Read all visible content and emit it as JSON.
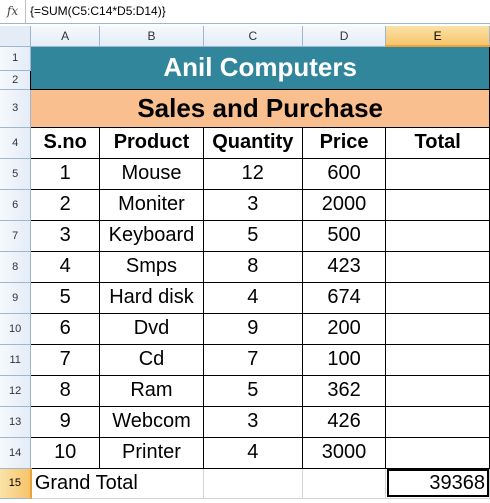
{
  "formula_bar": {
    "fx_label": "fx",
    "formula": "{=SUM(C5:C14*D5:D14)}"
  },
  "columns": [
    "A",
    "B",
    "C",
    "D",
    "E"
  ],
  "rows": [
    "1",
    "2",
    "3",
    "4",
    "5",
    "6",
    "7",
    "8",
    "9",
    "10",
    "11",
    "12",
    "13",
    "14",
    "15"
  ],
  "title": "Anil Computers",
  "subtitle": "Sales and Purchase",
  "table": {
    "headers": [
      "S.no",
      "Product",
      "Quantity",
      "Price",
      "Total"
    ],
    "records": [
      {
        "sno": "1",
        "product": "Mouse",
        "qty": "12",
        "price": "600"
      },
      {
        "sno": "2",
        "product": "Moniter",
        "qty": "3",
        "price": "2000"
      },
      {
        "sno": "3",
        "product": "Keyboard",
        "qty": "5",
        "price": "500"
      },
      {
        "sno": "4",
        "product": "Smps",
        "qty": "8",
        "price": "423"
      },
      {
        "sno": "5",
        "product": "Hard disk",
        "qty": "4",
        "price": "674"
      },
      {
        "sno": "6",
        "product": "Dvd",
        "qty": "9",
        "price": "200"
      },
      {
        "sno": "7",
        "product": "Cd",
        "qty": "7",
        "price": "100"
      },
      {
        "sno": "8",
        "product": "Ram",
        "qty": "5",
        "price": "362"
      },
      {
        "sno": "9",
        "product": "Webcom",
        "qty": "3",
        "price": "426"
      },
      {
        "sno": "10",
        "product": "Printer",
        "qty": "4",
        "price": "3000"
      }
    ]
  },
  "grand_total": {
    "label": "Grand Total",
    "value": "39368"
  },
  "active_cell": "E15",
  "colors": {
    "title_bg": "#31869b",
    "subtitle_bg": "#fabf8f",
    "selection_header": "#f7c46a"
  }
}
